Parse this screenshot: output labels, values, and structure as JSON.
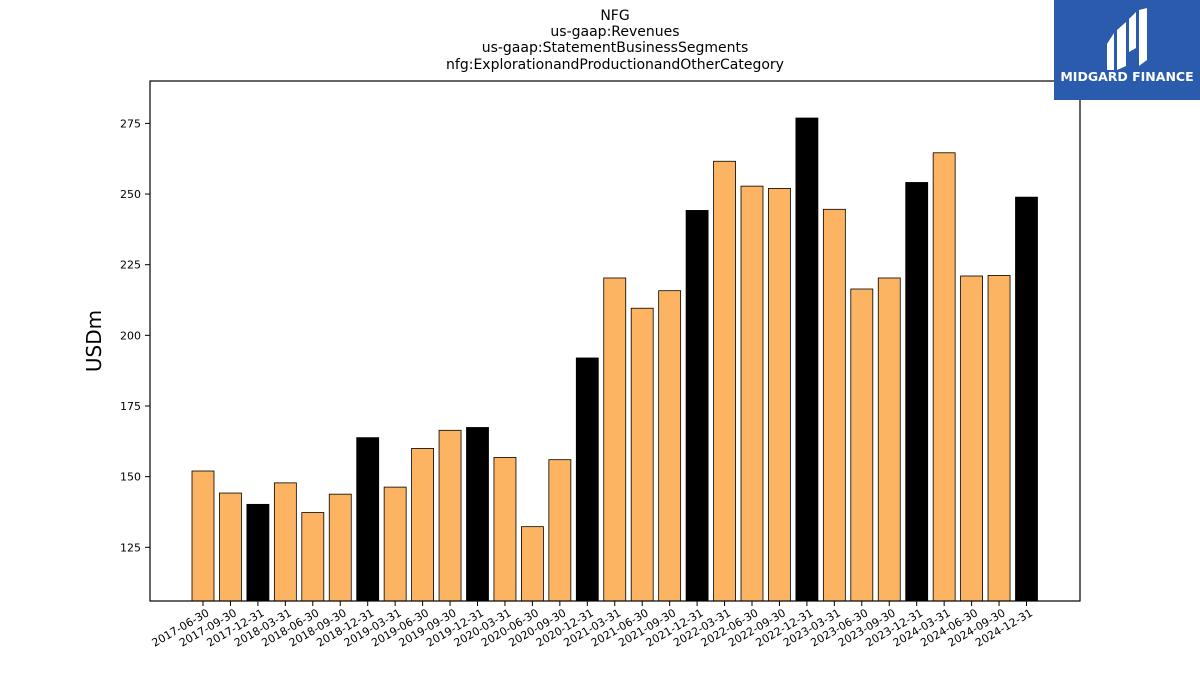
{
  "logo": {
    "text": "MIDGARD FINANCE",
    "background": "#2b5bad"
  },
  "chart_data": {
    "type": "bar",
    "title_lines": [
      "NFG",
      "us-gaap:Revenues",
      "us-gaap:StatementBusinessSegments",
      "nfg:ExplorationandProductionandOtherCategory"
    ],
    "xlabel": "",
    "ylabel": "USDm",
    "ylim": [
      106,
      290
    ],
    "yticks": [
      125,
      150,
      175,
      200,
      225,
      250,
      275
    ],
    "grid": false,
    "colors": {
      "quarter": "#fdb462",
      "year_end": "#000000",
      "edge": "#000000"
    },
    "categories": [
      "2017-06-30",
      "2017-09-30",
      "2017-12-31",
      "2018-03-31",
      "2018-06-30",
      "2018-09-30",
      "2018-12-31",
      "2019-03-31",
      "2019-06-30",
      "2019-09-30",
      "2019-12-31",
      "2020-03-31",
      "2020-06-30",
      "2020-09-30",
      "2020-12-31",
      "2021-03-31",
      "2021-06-30",
      "2021-09-30",
      "2021-12-31",
      "2022-03-31",
      "2022-06-30",
      "2022-09-30",
      "2022-12-31",
      "2023-03-31",
      "2023-06-30",
      "2023-09-30",
      "2023-12-31",
      "2024-03-31",
      "2024-06-30",
      "2024-09-30",
      "2024-12-31"
    ],
    "values": [
      152,
      144.2,
      140.2,
      147.8,
      137.3,
      143.8,
      163.8,
      146.3,
      160,
      166.4,
      167.4,
      156.8,
      132.3,
      156,
      192,
      220.3,
      209.6,
      215.8,
      244.2,
      261.6,
      252.8,
      252,
      276.9,
      244.6,
      216.4,
      220.3,
      254.1,
      264.6,
      221,
      221.2,
      248.9
    ]
  }
}
